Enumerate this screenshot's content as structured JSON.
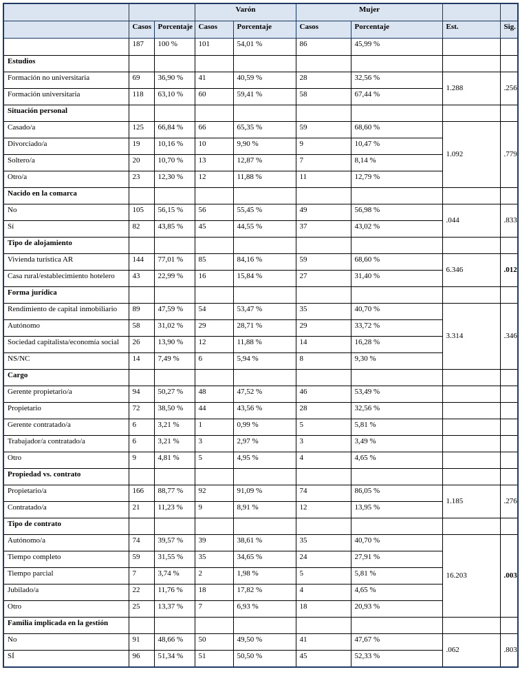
{
  "style": {
    "header_fill": "#dbe5f1",
    "outer_border_color": "#1f3864",
    "inner_border_color": "#000000"
  },
  "table": {
    "header": {
      "varon": "Varón",
      "mujer": "Mujer",
      "casos": "Casos",
      "porcentaje": "Porcentaje",
      "est": "Est.",
      "sig": "Sig."
    },
    "total_row": {
      "casos": "187",
      "pct": "100 %",
      "v_casos": "101",
      "v_pct": "54,01 %",
      "m_casos": "86",
      "m_pct": "45,99 %"
    },
    "sections": [
      {
        "title": "Estudios",
        "est": "1.288",
        "sig": ".256",
        "sig_bold": false,
        "merged": true,
        "rows": [
          {
            "label": "Formación no universitaria",
            "casos": "69",
            "pct": "36,90 %",
            "v_casos": "41",
            "v_pct": "40,59 %",
            "m_casos": "28",
            "m_pct": "32,56 %"
          },
          {
            "label": "Formación universitaria",
            "casos": "118",
            "pct": "63,10 %",
            "v_casos": "60",
            "v_pct": "59,41 %",
            "m_casos": "58",
            "m_pct": "67,44 %"
          }
        ]
      },
      {
        "title": "Situación personal",
        "est": "1.092",
        "sig": ".779",
        "sig_bold": false,
        "merged": true,
        "rows": [
          {
            "label": "Casado/a",
            "casos": "125",
            "pct": "66,84 %",
            "v_casos": "66",
            "v_pct": "65,35 %",
            "m_casos": "59",
            "m_pct": "68,60 %"
          },
          {
            "label": "Divorciado/a",
            "casos": "19",
            "pct": "10,16 %",
            "v_casos": "10",
            "v_pct": "9,90 %",
            "m_casos": "9",
            "m_pct": "10,47 %"
          },
          {
            "label": "Soltero/a",
            "casos": "20",
            "pct": "10,70 %",
            "v_casos": "13",
            "v_pct": "12,87 %",
            "m_casos": "7",
            "m_pct": "8,14 %"
          },
          {
            "label": "Otro/a",
            "casos": "23",
            "pct": "12,30 %",
            "v_casos": "12",
            "v_pct": "11,88 %",
            "m_casos": "11",
            "m_pct": "12,79 %"
          }
        ]
      },
      {
        "title": "Nacido en la comarca",
        "est": ".044",
        "sig": ".833",
        "sig_bold": false,
        "merged": true,
        "rows": [
          {
            "label": "No",
            "casos": "105",
            "pct": "56,15 %",
            "v_casos": "56",
            "v_pct": "55,45 %",
            "m_casos": "49",
            "m_pct": "56,98 %"
          },
          {
            "label": "Sí",
            "casos": "82",
            "pct": "43,85 %",
            "v_casos": "45",
            "v_pct": "44,55 %",
            "m_casos": "37",
            "m_pct": "43,02 %"
          }
        ]
      },
      {
        "title": "Tipo de alojamiento",
        "est": "6.346",
        "sig": ".012",
        "sig_bold": true,
        "merged": true,
        "rows": [
          {
            "label": "Vivienda turística AR",
            "casos": "144",
            "pct": "77,01 %",
            "v_casos": "85",
            "v_pct": "84,16 %",
            "m_casos": "59",
            "m_pct": "68,60 %"
          },
          {
            "label": "Casa rural/establecimiento hotelero",
            "casos": "43",
            "pct": "22,99 %",
            "v_casos": "16",
            "v_pct": "15,84 %",
            "m_casos": "27",
            "m_pct": "31,40 %"
          }
        ]
      },
      {
        "title": "Forma jurídica",
        "est": "3.314",
        "sig": ".346",
        "sig_bold": false,
        "merged": true,
        "rows": [
          {
            "label": "Rendimiento de capital inmobiliario",
            "casos": "89",
            "pct": "47,59 %",
            "v_casos": "54",
            "v_pct": "53,47 %",
            "m_casos": "35",
            "m_pct": "40,70 %"
          },
          {
            "label": "Autónomo",
            "casos": "58",
            "pct": "31,02 %",
            "v_casos": "29",
            "v_pct": "28,71 %",
            "m_casos": "29",
            "m_pct": "33,72 %"
          },
          {
            "label": "Sociedad capitalista/economía social",
            "casos": "26",
            "pct": "13,90 %",
            "v_casos": "12",
            "v_pct": "11,88 %",
            "m_casos": "14",
            "m_pct": "16,28 %"
          },
          {
            "label": "NS/NC",
            "casos": "14",
            "pct": "7,49 %",
            "v_casos": "6",
            "v_pct": "5,94 %",
            "m_casos": "8",
            "m_pct": "9,30 %"
          }
        ]
      },
      {
        "title": "Cargo",
        "est": "",
        "sig": "",
        "sig_bold": false,
        "merged": false,
        "rows": [
          {
            "label": "Gerente propietario/a",
            "casos": "94",
            "pct": "50,27 %",
            "v_casos": "48",
            "v_pct": "47,52 %",
            "m_casos": "46",
            "m_pct": "53,49 %"
          },
          {
            "label": "Propietario",
            "casos": "72",
            "pct": "38,50 %",
            "v_casos": "44",
            "v_pct": "43,56 %",
            "m_casos": "28",
            "m_pct": "32,56 %"
          },
          {
            "label": "Gerente contratado/a",
            "casos": "6",
            "pct": "3,21 %",
            "v_casos": "1",
            "v_pct": "0,99 %",
            "m_casos": "5",
            "m_pct": "5,81 %"
          },
          {
            "label": "Trabajador/a contratado/a",
            "casos": "6",
            "pct": "3,21 %",
            "v_casos": "3",
            "v_pct": "2,97 %",
            "m_casos": "3",
            "m_pct": "3,49 %"
          },
          {
            "label": "Otro",
            "casos": "9",
            "pct": "4,81 %",
            "v_casos": "5",
            "v_pct": "4,95 %",
            "m_casos": "4",
            "m_pct": "4,65 %"
          }
        ]
      },
      {
        "title": "Propiedad vs. contrato",
        "est": "1.185",
        "sig": ".276",
        "sig_bold": false,
        "merged": true,
        "rows": [
          {
            "label": "Propietario/a",
            "casos": "166",
            "pct": "88,77 %",
            "v_casos": "92",
            "v_pct": "91,09 %",
            "m_casos": "74",
            "m_pct": "86,05 %"
          },
          {
            "label": "Contratado/a",
            "casos": "21",
            "pct": "11,23 %",
            "v_casos": "9",
            "v_pct": "8,91 %",
            "m_casos": "12",
            "m_pct": "13,95 %"
          }
        ]
      },
      {
        "title": "Tipo de contrato",
        "est": "16.203",
        "sig": ".003",
        "sig_bold": true,
        "merged": true,
        "rows": [
          {
            "label": "Autónomo/a",
            "casos": "74",
            "pct": "39,57 %",
            "v_casos": "39",
            "v_pct": "38,61 %",
            "m_casos": "35",
            "m_pct": "40,70 %"
          },
          {
            "label": "Tiempo completo",
            "casos": "59",
            "pct": "31,55 %",
            "v_casos": "35",
            "v_pct": "34,65 %",
            "m_casos": "24",
            "m_pct": "27,91 %"
          },
          {
            "label": "Tiempo parcial",
            "casos": "7",
            "pct": "3,74 %",
            "v_casos": "2",
            "v_pct": "1,98 %",
            "m_casos": "5",
            "m_pct": "5,81 %"
          },
          {
            "label": "Jubilado/a",
            "casos": "22",
            "pct": "11,76 %",
            "v_casos": "18",
            "v_pct": "17,82 %",
            "m_casos": "4",
            "m_pct": "4,65 %"
          },
          {
            "label": "Otro",
            "casos": "25",
            "pct": "13,37 %",
            "v_casos": "7",
            "v_pct": "6,93 %",
            "m_casos": "18",
            "m_pct": "20,93 %"
          }
        ]
      },
      {
        "title": "Familia implicada en la gestión",
        "est": ".062",
        "sig": ".803",
        "sig_bold": false,
        "merged": true,
        "rows": [
          {
            "label": "No",
            "casos": "91",
            "pct": "48,66 %",
            "v_casos": "50",
            "v_pct": "49,50 %",
            "m_casos": "41",
            "m_pct": "47,67 %"
          },
          {
            "label": "SÍ",
            "casos": "96",
            "pct": "51,34 %",
            "v_casos": "51",
            "v_pct": "50,50 %",
            "m_casos": "45",
            "m_pct": "52,33 %"
          }
        ]
      }
    ]
  }
}
